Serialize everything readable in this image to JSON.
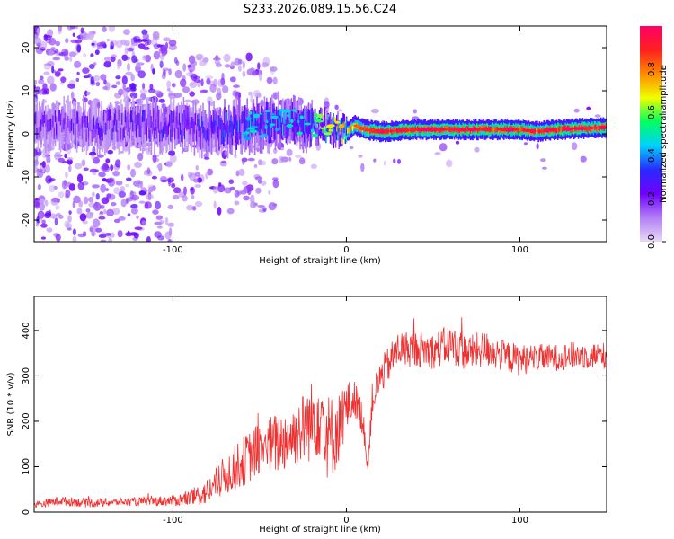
{
  "title": "S233.2026.089.15.56.C24",
  "chart_data": [
    {
      "type": "heatmap",
      "title": "S233.2026.089.15.56.C24",
      "xlabel": "Height of straight line (km)",
      "ylabel": "Frequency (Hz)",
      "xlim": [
        -180,
        150
      ],
      "ylim": [
        -25,
        25
      ],
      "xticks": [
        -100,
        0,
        100
      ],
      "yticks": [
        20,
        10,
        0,
        -10,
        -20
      ],
      "grid": false,
      "colorbar": {
        "label": "Normalized spectral amplitude",
        "range": [
          0,
          1
        ],
        "ticks": [
          0.0,
          0.2,
          0.4,
          0.6,
          0.8
        ],
        "colormap": [
          "#e8d8f8",
          "#b37ff5",
          "#7000ff",
          "#2a2aff",
          "#00d0ff",
          "#00ff60",
          "#f0ff00",
          "#ff8a00",
          "#ff2020",
          "#ff0066"
        ]
      },
      "ridge_x": [
        -180,
        -100,
        -80,
        -60,
        -40,
        -20,
        -10,
        0,
        5,
        10,
        20,
        40,
        60,
        80,
        100,
        110,
        120,
        150
      ],
      "ridge_freq": [
        2,
        2,
        1,
        1.5,
        3,
        2,
        1.5,
        0.5,
        2,
        1,
        0.5,
        1,
        1,
        1,
        1,
        0.5,
        1,
        1.5
      ],
      "ridge_amplitude": [
        0.2,
        0.25,
        0.3,
        0.35,
        0.35,
        0.4,
        0.55,
        0.7,
        0.75,
        0.8,
        0.85,
        0.85,
        0.85,
        0.85,
        0.85,
        0.8,
        0.85,
        0.85
      ]
    },
    {
      "type": "line",
      "xlabel": "Height of straight line (km)",
      "ylabel": "SNR (10 * v/v)",
      "xlim": [
        -180,
        150
      ],
      "ylim": [
        0,
        475
      ],
      "xticks": [
        -100,
        0,
        100
      ],
      "yticks": [
        0,
        100,
        200,
        300,
        400
      ],
      "grid": false,
      "series": [
        {
          "name": "SNR",
          "color": "#f03030",
          "x": [
            -180,
            -165,
            -150,
            -130,
            -100,
            -90,
            -80,
            -70,
            -60,
            -50,
            -40,
            -30,
            -20,
            -15,
            -10,
            -5,
            0,
            5,
            10,
            12,
            15,
            20,
            30,
            40,
            50,
            60,
            70,
            80,
            90,
            100,
            110,
            120,
            130,
            140,
            150
          ],
          "y": [
            15,
            25,
            20,
            22,
            25,
            30,
            45,
            80,
            110,
            140,
            150,
            170,
            200,
            230,
            160,
            180,
            230,
            250,
            200,
            90,
            250,
            300,
            360,
            360,
            355,
            370,
            350,
            360,
            345,
            335,
            340,
            340,
            345,
            345,
            345
          ],
          "spread": [
            8,
            10,
            10,
            8,
            12,
            18,
            30,
            45,
            55,
            60,
            70,
            70,
            90,
            110,
            100,
            80,
            60,
            40,
            40,
            20,
            40,
            40,
            40,
            40,
            40,
            45,
            40,
            40,
            35,
            35,
            30,
            30,
            30,
            30,
            30
          ]
        }
      ]
    }
  ]
}
